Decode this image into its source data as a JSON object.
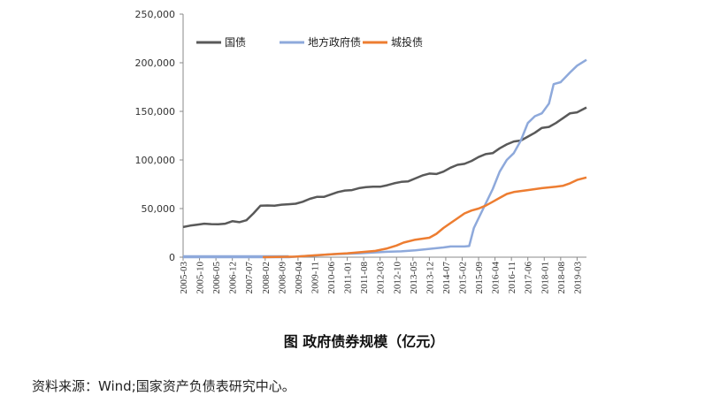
{
  "caption": "图  政府债券规模（亿元）",
  "source": "资料来源：Wind;国家资产负债表研究中心。",
  "chart_data": {
    "type": "line",
    "title": "图  政府债券规模（亿元）",
    "xlabel": "",
    "ylabel": "",
    "ylim": [
      0,
      250000
    ],
    "yticks": [
      0,
      50000,
      100000,
      150000,
      200000,
      250000
    ],
    "ytick_labels": [
      "0",
      "50,000",
      "100,000",
      "150,000",
      "200,000",
      "250,000"
    ],
    "xlim": [
      "2005-03",
      "2019-07"
    ],
    "xtick_labels": [
      "2005-03",
      "2005-10",
      "2006-05",
      "2006-12",
      "2007-07",
      "2008-02",
      "2008-09",
      "2009-04",
      "2009-11",
      "2010-06",
      "2011-01",
      "2011-08",
      "2012-03",
      "2012-10",
      "2013-05",
      "2013-12",
      "2014-07",
      "2015-02",
      "2015-09",
      "2016-04",
      "2016-11",
      "2017-06",
      "2018-01",
      "2018-08",
      "2019-03"
    ],
    "grid": false,
    "legend_position": "top-left",
    "series": [
      {
        "name": "国债",
        "color": "#595959",
        "points": [
          [
            "2005-03",
            31000
          ],
          [
            "2005-06",
            32500
          ],
          [
            "2005-09",
            33500
          ],
          [
            "2005-12",
            34500
          ],
          [
            "2006-03",
            34000
          ],
          [
            "2006-06",
            33800
          ],
          [
            "2006-09",
            34500
          ],
          [
            "2006-12",
            37000
          ],
          [
            "2007-03",
            36000
          ],
          [
            "2007-06",
            38000
          ],
          [
            "2007-09",
            45000
          ],
          [
            "2007-12",
            53000
          ],
          [
            "2008-03",
            53200
          ],
          [
            "2008-06",
            53000
          ],
          [
            "2008-09",
            54000
          ],
          [
            "2008-12",
            54500
          ],
          [
            "2009-03",
            55000
          ],
          [
            "2009-06",
            57000
          ],
          [
            "2009-09",
            60000
          ],
          [
            "2009-12",
            62000
          ],
          [
            "2010-03",
            62000
          ],
          [
            "2010-06",
            64500
          ],
          [
            "2010-09",
            67000
          ],
          [
            "2010-12",
            68500
          ],
          [
            "2011-03",
            69000
          ],
          [
            "2011-06",
            71000
          ],
          [
            "2011-09",
            72000
          ],
          [
            "2011-12",
            72500
          ],
          [
            "2012-03",
            72500
          ],
          [
            "2012-06",
            74000
          ],
          [
            "2012-09",
            76000
          ],
          [
            "2012-12",
            77500
          ],
          [
            "2013-03",
            78000
          ],
          [
            "2013-06",
            81000
          ],
          [
            "2013-09",
            84000
          ],
          [
            "2013-12",
            86000
          ],
          [
            "2014-03",
            85500
          ],
          [
            "2014-06",
            88000
          ],
          [
            "2014-09",
            92000
          ],
          [
            "2014-12",
            95000
          ],
          [
            "2015-03",
            96000
          ],
          [
            "2015-06",
            99000
          ],
          [
            "2015-09",
            103000
          ],
          [
            "2015-12",
            106000
          ],
          [
            "2016-03",
            107000
          ],
          [
            "2016-06",
            112000
          ],
          [
            "2016-09",
            116000
          ],
          [
            "2016-12",
            119000
          ],
          [
            "2017-03",
            120000
          ],
          [
            "2017-06",
            124000
          ],
          [
            "2017-09",
            128000
          ],
          [
            "2017-12",
            133000
          ],
          [
            "2018-03",
            134000
          ],
          [
            "2018-06",
            138000
          ],
          [
            "2018-09",
            143000
          ],
          [
            "2018-12",
            148000
          ],
          [
            "2019-03",
            149000
          ],
          [
            "2019-07",
            154000
          ]
        ]
      },
      {
        "name": "地方政府债",
        "color": "#8EA9DB",
        "points": [
          [
            "2005-03",
            0
          ],
          [
            "2008-12",
            0
          ],
          [
            "2009-03",
            500
          ],
          [
            "2009-06",
            1000
          ],
          [
            "2009-12",
            1800
          ],
          [
            "2010-06",
            3000
          ],
          [
            "2011-06",
            4000
          ],
          [
            "2012-06",
            5500
          ],
          [
            "2012-12",
            6000
          ],
          [
            "2013-06",
            7000
          ],
          [
            "2013-12",
            8500
          ],
          [
            "2014-06",
            10000
          ],
          [
            "2014-09",
            11000
          ],
          [
            "2015-03",
            11000
          ],
          [
            "2015-05",
            11500
          ],
          [
            "2015-07",
            30000
          ],
          [
            "2015-09",
            40000
          ],
          [
            "2015-12",
            55000
          ],
          [
            "2016-03",
            70000
          ],
          [
            "2016-06",
            88000
          ],
          [
            "2016-09",
            100000
          ],
          [
            "2016-12",
            107000
          ],
          [
            "2017-03",
            120000
          ],
          [
            "2017-06",
            138000
          ],
          [
            "2017-09",
            145000
          ],
          [
            "2017-12",
            148000
          ],
          [
            "2018-03",
            158000
          ],
          [
            "2018-05",
            178000
          ],
          [
            "2018-08",
            180000
          ],
          [
            "2018-12",
            190000
          ],
          [
            "2019-03",
            197000
          ],
          [
            "2019-07",
            203000
          ]
        ]
      },
      {
        "name": "城投债",
        "color": "#ED7D31",
        "points": [
          [
            "2008-01",
            0
          ],
          [
            "2009-03",
            500
          ],
          [
            "2009-06",
            1000
          ],
          [
            "2009-12",
            2000
          ],
          [
            "2010-06",
            3000
          ],
          [
            "2011-01",
            4000
          ],
          [
            "2011-06",
            5000
          ],
          [
            "2012-01",
            6500
          ],
          [
            "2012-06",
            9000
          ],
          [
            "2012-10",
            12000
          ],
          [
            "2013-01",
            15000
          ],
          [
            "2013-06",
            18000
          ],
          [
            "2013-12",
            20000
          ],
          [
            "2014-03",
            24000
          ],
          [
            "2014-06",
            30000
          ],
          [
            "2014-09",
            35000
          ],
          [
            "2014-12",
            40000
          ],
          [
            "2015-03",
            45000
          ],
          [
            "2015-06",
            48000
          ],
          [
            "2015-09",
            50000
          ],
          [
            "2015-12",
            53000
          ],
          [
            "2016-03",
            57000
          ],
          [
            "2016-06",
            61000
          ],
          [
            "2016-09",
            65000
          ],
          [
            "2016-12",
            67000
          ],
          [
            "2017-06",
            69000
          ],
          [
            "2017-12",
            71000
          ],
          [
            "2018-06",
            72500
          ],
          [
            "2018-09",
            73500
          ],
          [
            "2018-12",
            76000
          ],
          [
            "2019-03",
            79500
          ],
          [
            "2019-07",
            82000
          ]
        ]
      }
    ]
  }
}
